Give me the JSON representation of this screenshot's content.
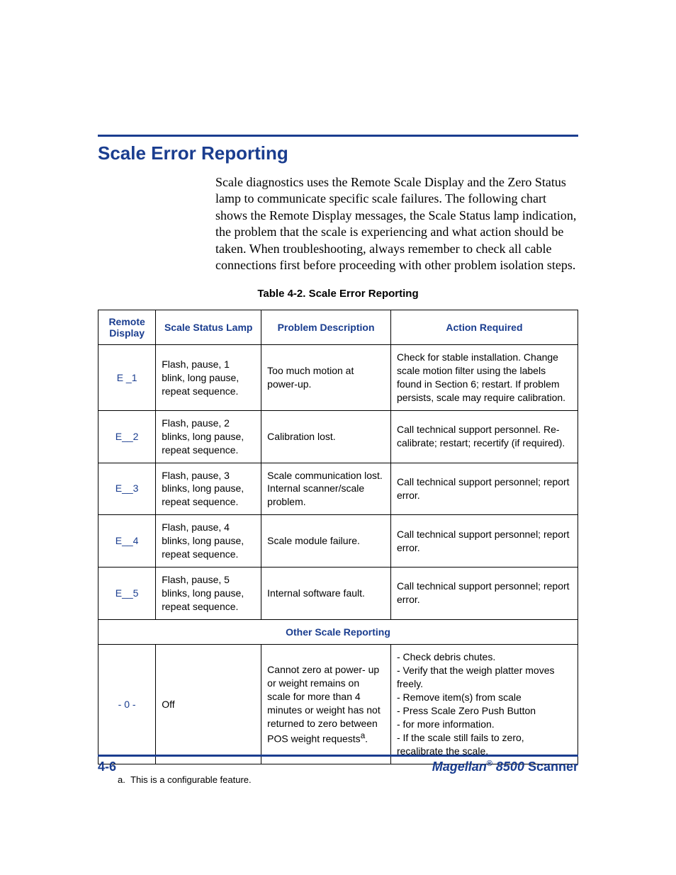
{
  "colors": {
    "accent": "#1a3d8f",
    "text": "#000000",
    "border": "#000000",
    "background": "#ffffff"
  },
  "section": {
    "title": "Scale Error Reporting",
    "body": "Scale diagnostics uses the Remote Scale Display and the Zero Status lamp to communicate specific scale failures. The following chart shows the Remote Display messages, the Scale Status lamp indication, the problem that the scale is experiencing and what action should be taken. When troubleshooting, always remember to check all cable connections first before proceeding with other problem isolation steps."
  },
  "table": {
    "caption": "Table 4-2. Scale Error Reporting",
    "headers": {
      "remote": "Remote Display",
      "status": "Scale Status Lamp",
      "problem": "Problem Description",
      "action": "Action Required"
    },
    "rows": [
      {
        "remote": "E _1",
        "status": "Flash, pause, 1 blink, long pause, repeat sequence.",
        "problem": "Too much motion at power-up.",
        "action": "Check for stable installation. Change scale motion filter using the labels found in Section 6; restart. If problem persists, scale may require calibration."
      },
      {
        "remote": "E__2",
        "status": "Flash, pause, 2 blinks, long pause, repeat sequence.",
        "problem": "Calibration lost.",
        "action": "Call technical support personnel. Re-calibrate; restart; recertify (if required)."
      },
      {
        "remote": "E__3",
        "status": "Flash, pause, 3 blinks, long pause, repeat sequence.",
        "problem": "Scale communication lost. Internal scanner/scale problem.",
        "action": "Call technical support personnel; report error."
      },
      {
        "remote": "E__4",
        "status": "Flash, pause, 4 blinks, long pause, repeat sequence.",
        "problem": "Scale module failure.",
        "action": "Call technical support personnel; report error."
      },
      {
        "remote": "E__5",
        "status": "Flash, pause, 5 blinks, long pause, repeat sequence.",
        "problem": "Internal software fault.",
        "action": "Call technical support personnel; report error."
      }
    ],
    "subheader": "Other Scale Reporting",
    "rows2": [
      {
        "remote": "- 0 -",
        "status": "Off",
        "problem_pre": "Cannot zero at power- up or weight remains on scale for more than 4 minutes or weight has not returned to zero between POS weight requests",
        "problem_sup": "a",
        "problem_post": ".",
        "action": "- Check debris chutes.\n- Verify that the weigh platter moves freely.\n- Remove item(s) from scale\n- Press Scale Zero Push Button\n- for more information.\n- If the scale still fails to zero, recalibrate the scale."
      }
    ]
  },
  "footnote": {
    "marker": "a.",
    "text": "This is a configurable feature."
  },
  "footer": {
    "page": "4-6",
    "brand": "Magellan",
    "reg": "®",
    "model": " 8500",
    "suffix": " Scanner"
  }
}
